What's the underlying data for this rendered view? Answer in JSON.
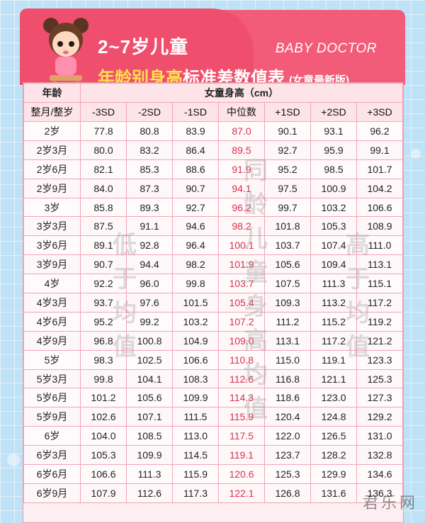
{
  "header": {
    "title_line1": "2~7岁儿童",
    "title_line2_highlight": "年龄别身高",
    "title_line2_rest": "标准差数值表",
    "edition": "(女童最新版)",
    "brand": "BABY DOCTOR"
  },
  "table": {
    "age_header": "年龄",
    "age_subheader": "整月/整岁",
    "group_header": "女童身高（cm）",
    "columns": [
      "-3SD",
      "-2SD",
      "-1SD",
      "中位数",
      "+1SD",
      "+2SD",
      "+3SD"
    ],
    "rows": [
      {
        "age": "2岁",
        "values": [
          "77.8",
          "80.8",
          "83.9",
          "87.0",
          "90.1",
          "93.1",
          "96.2"
        ]
      },
      {
        "age": "2岁3月",
        "values": [
          "80.0",
          "83.2",
          "86.4",
          "89.5",
          "92.7",
          "95.9",
          "99.1"
        ]
      },
      {
        "age": "2岁6月",
        "values": [
          "82.1",
          "85.3",
          "88.6",
          "91.9",
          "95.2",
          "98.5",
          "101.7"
        ]
      },
      {
        "age": "2岁9月",
        "values": [
          "84.0",
          "87.3",
          "90.7",
          "94.1",
          "97.5",
          "100.9",
          "104.2"
        ]
      },
      {
        "age": "3岁",
        "values": [
          "85.8",
          "89.3",
          "92.7",
          "96.2",
          "99.7",
          "103.2",
          "106.6"
        ]
      },
      {
        "age": "3岁3月",
        "values": [
          "87.5",
          "91.1",
          "94.6",
          "98.2",
          "101.8",
          "105.3",
          "108.9"
        ]
      },
      {
        "age": "3岁6月",
        "values": [
          "89.1",
          "92.8",
          "96.4",
          "100.1",
          "103.7",
          "107.4",
          "111.0"
        ]
      },
      {
        "age": "3岁9月",
        "values": [
          "90.7",
          "94.4",
          "98.2",
          "101.9",
          "105.6",
          "109.4",
          "113.1"
        ]
      },
      {
        "age": "4岁",
        "values": [
          "92.2",
          "96.0",
          "99.8",
          "103.7",
          "107.5",
          "111.3",
          "115.1"
        ]
      },
      {
        "age": "4岁3月",
        "values": [
          "93.7",
          "97.6",
          "101.5",
          "105.4",
          "109.3",
          "113.2",
          "117.2"
        ]
      },
      {
        "age": "4岁6月",
        "values": [
          "95.2",
          "99.2",
          "103.2",
          "107.2",
          "111.2",
          "115.2",
          "119.2"
        ]
      },
      {
        "age": "4岁9月",
        "values": [
          "96.8",
          "100.8",
          "104.9",
          "109.0",
          "113.1",
          "117.2",
          "121.2"
        ]
      },
      {
        "age": "5岁",
        "values": [
          "98.3",
          "102.5",
          "106.6",
          "110.8",
          "115.0",
          "119.1",
          "123.3"
        ]
      },
      {
        "age": "5岁3月",
        "values": [
          "99.8",
          "104.1",
          "108.3",
          "112.6",
          "116.8",
          "121.1",
          "125.3"
        ]
      },
      {
        "age": "5岁6月",
        "values": [
          "101.2",
          "105.6",
          "109.9",
          "114.3",
          "118.6",
          "123.0",
          "127.3"
        ]
      },
      {
        "age": "5岁9月",
        "values": [
          "102.6",
          "107.1",
          "111.5",
          "115.9",
          "120.4",
          "124.8",
          "129.2"
        ]
      },
      {
        "age": "6岁",
        "values": [
          "104.0",
          "108.5",
          "113.0",
          "117.5",
          "122.0",
          "126.5",
          "131.0"
        ]
      },
      {
        "age": "6岁3月",
        "values": [
          "105.3",
          "109.9",
          "114.5",
          "119.1",
          "123.7",
          "128.2",
          "132.8"
        ]
      },
      {
        "age": "6岁6月",
        "values": [
          "106.6",
          "111.3",
          "115.9",
          "120.6",
          "125.3",
          "129.9",
          "134.6"
        ]
      },
      {
        "age": "6岁9月",
        "values": [
          "107.9",
          "112.6",
          "117.3",
          "122.1",
          "126.8",
          "131.6",
          "136.3"
        ]
      }
    ]
  },
  "watermarks": {
    "low": "低于均值",
    "mid": "同龄儿童身高均值",
    "high": "高于均值"
  },
  "site_mark": "君乐网",
  "colors": {
    "header_pink": "#f25c78",
    "title_highlight": "#ffe14d",
    "median_red": "#d9304f",
    "grid_border": "#f2a5b4"
  }
}
